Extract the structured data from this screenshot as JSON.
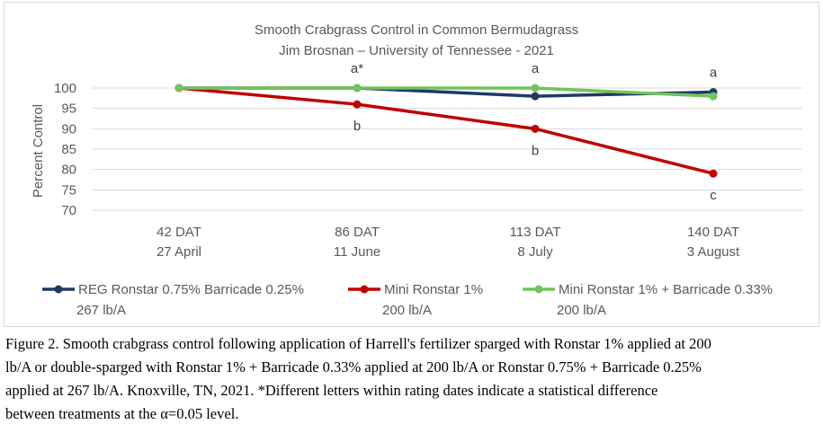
{
  "chart_data": {
    "type": "line",
    "title": "Smooth Crabgrass Control in Common Bermudagrass",
    "subtitle": "Jim Brosnan – University of Tennessee - 2021",
    "ylabel": "Percent Control",
    "ylim": [
      70,
      100
    ],
    "yticks": [
      70,
      75,
      80,
      85,
      90,
      95,
      100
    ],
    "grid": true,
    "legend_position": "bottom",
    "categories": [
      {
        "line1": "42 DAT",
        "line2": "27 April"
      },
      {
        "line1": "86 DAT",
        "line2": "11 June"
      },
      {
        "line1": "113 DAT",
        "line2": "8 July"
      },
      {
        "line1": "140 DAT",
        "line2": "3 August"
      }
    ],
    "series": [
      {
        "name_line1": "REG Ronstar 0.75% Barricade 0.25%",
        "name_line2": "267 lb/A",
        "color": "#203864",
        "values": [
          100,
          100,
          98,
          99
        ]
      },
      {
        "name_line1": "Mini Ronstar 1%",
        "name_line2": "200 lb/A",
        "color": "#c00000",
        "values": [
          100,
          96,
          90,
          79
        ]
      },
      {
        "name_line1": "Mini Ronstar 1% + Barricade 0.33%",
        "name_line2": "200 lb/A",
        "color": "#70c45a",
        "values": [
          100,
          100,
          100,
          98
        ]
      }
    ],
    "annotations": [
      {
        "text": "a*",
        "category": 1,
        "position": "above",
        "y": 100
      },
      {
        "text": "b",
        "category": 1,
        "position": "below",
        "y": 96
      },
      {
        "text": "a",
        "category": 2,
        "position": "above",
        "y": 100
      },
      {
        "text": "b",
        "category": 2,
        "position": "below",
        "y": 90
      },
      {
        "text": "a",
        "category": 3,
        "position": "above",
        "y": 99
      },
      {
        "text": "c",
        "category": 3,
        "position": "below",
        "y": 79
      }
    ]
  },
  "caption": {
    "lines": [
      "Figure 2.  Smooth crabgrass control following application of Harrell's fertilizer sparged with Ronstar 1% applied at 200",
      "lb/A or double-sparged with Ronstar 1% + Barricade 0.33% applied at 200 lb/A or Ronstar 0.75% + Barricade 0.25%",
      "applied at 267 lb/A.  Knoxville, TN, 2021.  *Different letters within rating dates indicate a statistical difference",
      "between treatments at the α=0.05 level."
    ]
  }
}
